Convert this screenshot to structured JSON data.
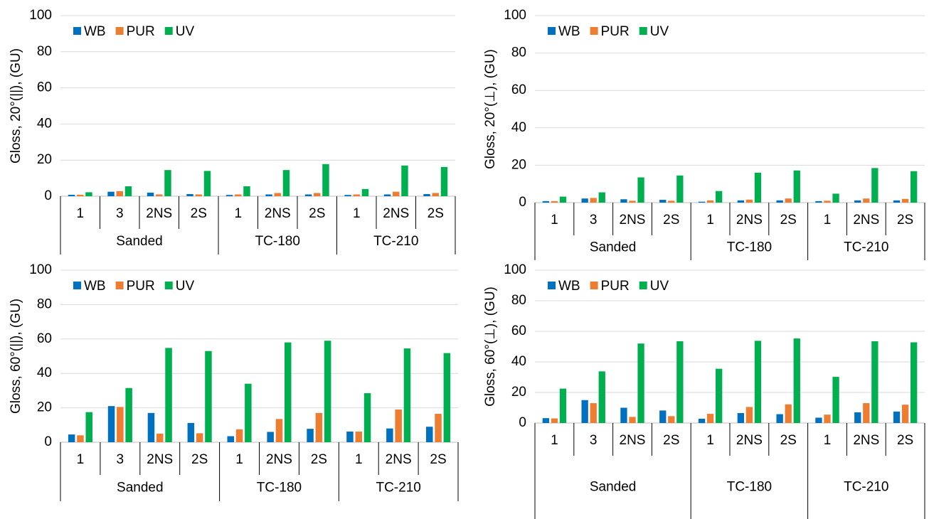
{
  "chart_data": [
    {
      "type": "bar",
      "y_label": "Gloss, 20°(||), (GU)",
      "groups": [
        {
          "name": "Sanded",
          "categories": [
            "1",
            "3",
            "2NS",
            "2S"
          ]
        },
        {
          "name": "TC-180",
          "categories": [
            "1",
            "2NS",
            "2S"
          ]
        },
        {
          "name": "TC-210",
          "categories": [
            "1",
            "2NS",
            "2S"
          ]
        }
      ],
      "series": [
        {
          "name": "WB",
          "color": "#0070c0",
          "values": [
            0.8,
            2.5,
            2,
            1.2,
            0.7,
            1,
            1,
            0.7,
            1,
            1.2
          ]
        },
        {
          "name": "PUR",
          "color": "#ed7d31",
          "values": [
            0.8,
            2.8,
            1,
            1,
            1,
            1.8,
            1.8,
            1,
            2.5,
            1.8
          ]
        },
        {
          "name": "UV",
          "color": "#00b050",
          "values": [
            2.2,
            5.5,
            14.5,
            14,
            5.5,
            14.5,
            17.8,
            4,
            17,
            16.2
          ]
        }
      ],
      "ylim": [
        0,
        100
      ],
      "yticks": [
        0,
        20,
        40,
        60,
        80,
        100
      ],
      "grid": true,
      "legend": "upper left"
    },
    {
      "type": "bar",
      "y_label": "Gloss, 20°(⊥), (GU)",
      "groups": [
        {
          "name": "Sanded",
          "categories": [
            "1",
            "3",
            "2NS",
            "2S"
          ]
        },
        {
          "name": "TC-180",
          "categories": [
            "1",
            "2NS",
            "2S"
          ]
        },
        {
          "name": "TC-210",
          "categories": [
            "1",
            "2NS",
            "2S"
          ]
        }
      ],
      "series": [
        {
          "name": "WB",
          "color": "#0070c0",
          "values": [
            0.8,
            2.2,
            1.8,
            1.5,
            0.5,
            1.2,
            1.2,
            0.8,
            1.2,
            1.2
          ]
        },
        {
          "name": "PUR",
          "color": "#ed7d31",
          "values": [
            0.8,
            2.5,
            1,
            1,
            1.2,
            1.6,
            2.2,
            1,
            2.2,
            2
          ]
        },
        {
          "name": "UV",
          "color": "#00b050",
          "values": [
            3.2,
            5.5,
            13.5,
            14.5,
            6.2,
            16,
            17.2,
            4.8,
            18.5,
            16.8
          ]
        }
      ],
      "ylim": [
        0,
        100
      ],
      "yticks": [
        0,
        20,
        40,
        60,
        80,
        100
      ],
      "grid": true,
      "legend": "upper left"
    },
    {
      "type": "bar",
      "y_label": "Gloss, 60°(||), (GU)",
      "groups": [
        {
          "name": "Sanded",
          "categories": [
            "1",
            "3",
            "2NS",
            "2S"
          ]
        },
        {
          "name": "TC-180",
          "categories": [
            "1",
            "2NS",
            "2S"
          ]
        },
        {
          "name": "TC-210",
          "categories": [
            "1",
            "2NS",
            "2S"
          ]
        }
      ],
      "series": [
        {
          "name": "WB",
          "color": "#0070c0",
          "values": [
            4.5,
            21,
            17,
            11.2,
            3.5,
            6,
            7.8,
            6.2,
            8,
            9
          ]
        },
        {
          "name": "PUR",
          "color": "#ed7d31",
          "values": [
            4,
            20.5,
            5,
            5.2,
            7.5,
            13.5,
            17,
            6.2,
            19,
            16.5
          ]
        },
        {
          "name": "UV",
          "color": "#00b050",
          "values": [
            17.5,
            31.5,
            54.8,
            53,
            34,
            58,
            59,
            28.5,
            54.5,
            51.8
          ]
        }
      ],
      "ylim": [
        0,
        100
      ],
      "yticks": [
        0,
        20,
        40,
        60,
        80,
        100
      ],
      "grid": true,
      "legend": "upper left"
    },
    {
      "type": "bar",
      "y_label": "Gloss, 60°(⊥), (GU)",
      "groups": [
        {
          "name": "Sanded",
          "categories": [
            "1",
            "3",
            "2NS",
            "2S"
          ]
        },
        {
          "name": "TC-180",
          "categories": [
            "1",
            "2NS",
            "2S"
          ]
        },
        {
          "name": "TC-210",
          "categories": [
            "1",
            "2NS",
            "2S"
          ]
        }
      ],
      "series": [
        {
          "name": "WB",
          "color": "#0070c0",
          "values": [
            3.2,
            15,
            10,
            8.2,
            2.8,
            6.5,
            5.8,
            3.5,
            7,
            7.5
          ]
        },
        {
          "name": "PUR",
          "color": "#ed7d31",
          "values": [
            3,
            13,
            4,
            4.5,
            6,
            10.5,
            12.2,
            5.5,
            13,
            12
          ]
        },
        {
          "name": "UV",
          "color": "#00b050",
          "values": [
            22.5,
            33.8,
            52,
            53.5,
            35.5,
            53.8,
            55.3,
            30.2,
            53.5,
            52.8
          ]
        }
      ],
      "ylim": [
        0,
        100
      ],
      "yticks": [
        0,
        20,
        40,
        60,
        80,
        100
      ],
      "grid": true,
      "legend": "upper left"
    }
  ]
}
